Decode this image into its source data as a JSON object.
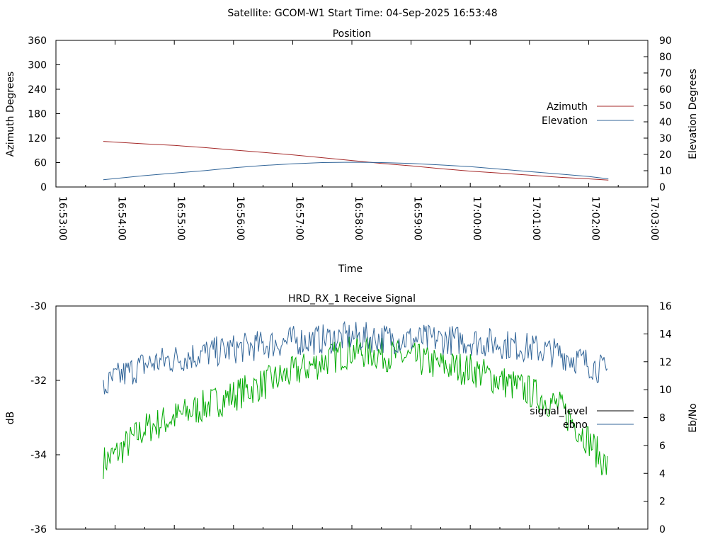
{
  "header": {
    "title": "Satellite: GCOM-W1    Start Time: 04-Sep-2025 16:53:48"
  },
  "colors": {
    "azimuth": "#a52a2a",
    "elevation": "#336699",
    "ebno": "#336699",
    "signal_green": "#00aa00",
    "signal_level_legend": "#000000"
  },
  "chart_data": [
    {
      "type": "line",
      "title": "Position",
      "xlabel": "Time",
      "ylabel": "Azimuth Degrees",
      "y2label": "Elevation Degrees",
      "xlim": [
        "16:53:00",
        "17:03:00"
      ],
      "ylim": [
        0,
        360
      ],
      "y2lim": [
        0,
        90
      ],
      "xticks": [
        "16:53:00",
        "16:54:00",
        "16:55:00",
        "16:56:00",
        "16:57:00",
        "16:58:00",
        "16:59:00",
        "17:00:00",
        "17:01:00",
        "17:02:00",
        "17:03:00"
      ],
      "yticks": [
        "0",
        "60",
        "120",
        "180",
        "240",
        "300",
        "360"
      ],
      "y2ticks": [
        "0",
        "10",
        "20",
        "30",
        "40",
        "50",
        "60",
        "70",
        "80",
        "90"
      ],
      "legend_position": "right",
      "grid": false,
      "series": [
        {
          "name": "Azimuth",
          "axis": "left",
          "x": [
            "16:53:48",
            "16:54:30",
            "16:55:00",
            "16:55:30",
            "16:56:00",
            "16:56:30",
            "16:57:00",
            "16:57:30",
            "16:58:00",
            "16:58:30",
            "16:59:00",
            "16:59:30",
            "17:00:00",
            "17:00:30",
            "17:01:00",
            "17:01:30",
            "17:02:00",
            "17:02:20"
          ],
          "values": [
            112,
            106,
            102,
            97,
            91,
            85,
            79,
            72,
            65,
            58,
            52,
            45,
            39,
            34,
            29,
            24,
            20,
            17
          ]
        },
        {
          "name": "Elevation",
          "axis": "right",
          "x": [
            "16:53:48",
            "16:54:30",
            "16:55:00",
            "16:55:30",
            "16:56:00",
            "16:56:30",
            "16:57:00",
            "16:57:30",
            "16:58:00",
            "16:58:30",
            "16:59:00",
            "16:59:30",
            "17:00:00",
            "17:00:30",
            "17:01:00",
            "17:01:30",
            "17:02:00",
            "17:02:20"
          ],
          "values": [
            4.5,
            7.0,
            8.5,
            10.0,
            11.8,
            13.2,
            14.2,
            15.0,
            15.2,
            15.0,
            14.5,
            13.5,
            12.5,
            11.0,
            9.5,
            8.0,
            6.5,
            5.0
          ]
        }
      ]
    },
    {
      "type": "line",
      "title": "HRD_RX_1 Receive Signal",
      "xlabel": "",
      "ylabel": "dB",
      "y2label": "Eb/No",
      "xlim": [
        "16:53:00",
        "17:03:00"
      ],
      "ylim": [
        -36,
        -30
      ],
      "y2lim": [
        0,
        16
      ],
      "yticks": [
        "-36",
        "-34",
        "-32",
        "-30"
      ],
      "y2ticks": [
        "0",
        "2",
        "4",
        "6",
        "8",
        "10",
        "12",
        "14",
        "16"
      ],
      "legend_position": "right",
      "grid": false,
      "series": [
        {
          "name": "signal_level",
          "axis": "left",
          "x": [
            "16:53:48",
            "16:54:00",
            "16:54:30",
            "16:55:00",
            "16:55:30",
            "16:56:00",
            "16:56:30",
            "16:57:00",
            "16:57:30",
            "16:58:00",
            "16:58:30",
            "16:59:00",
            "16:59:30",
            "17:00:00",
            "17:00:30",
            "17:01:00",
            "17:01:30",
            "17:02:00",
            "17:02:20"
          ],
          "values": [
            -34.2,
            -34.0,
            -33.3,
            -33.0,
            -32.7,
            -32.4,
            -32.1,
            -31.8,
            -31.5,
            -31.2,
            -31.3,
            -31.4,
            -31.6,
            -31.7,
            -32.0,
            -32.3,
            -32.7,
            -33.6,
            -34.4
          ]
        },
        {
          "name": "ebno",
          "axis": "right",
          "x": [
            "16:53:48",
            "16:54:00",
            "16:54:30",
            "16:55:00",
            "16:55:30",
            "16:56:00",
            "16:56:30",
            "16:57:00",
            "16:57:30",
            "16:58:00",
            "16:58:30",
            "16:59:00",
            "16:59:30",
            "17:00:00",
            "17:00:30",
            "17:01:00",
            "17:01:30",
            "17:02:00",
            "17:02:20"
          ],
          "values": [
            10.0,
            10.8,
            11.8,
            12.2,
            12.6,
            12.9,
            13.2,
            13.5,
            13.6,
            13.8,
            13.7,
            13.6,
            13.6,
            13.5,
            13.3,
            13.0,
            12.6,
            11.9,
            11.2
          ]
        }
      ]
    }
  ]
}
